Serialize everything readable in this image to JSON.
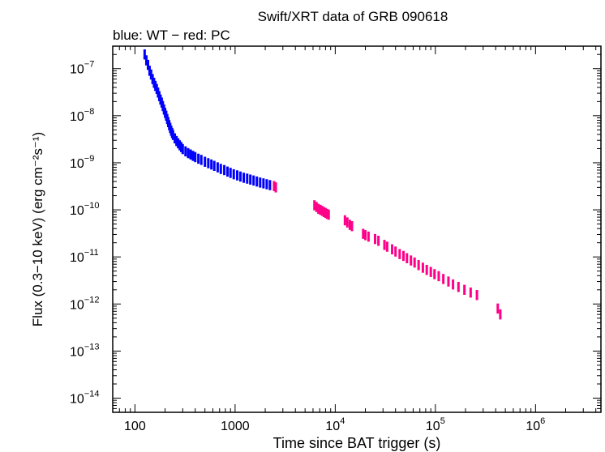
{
  "chart_data": {
    "type": "scatter",
    "title": "Swift/XRT data of GRB 090618",
    "subtitle": "blue: WT − red: PC",
    "xlabel": "Time since BAT trigger (s)",
    "ylabel": "Flux (0.3−10 keV) (erg cm⁻²s⁻¹)",
    "xscale": "log",
    "yscale": "log",
    "xlim": [
      60,
      4500000
    ],
    "ylim": [
      5e-15,
      3e-07
    ],
    "grid": false,
    "x_ticks": [
      {
        "value": 100,
        "base": "100",
        "exp": ""
      },
      {
        "value": 1000,
        "base": "1000",
        "exp": ""
      },
      {
        "value": 10000,
        "base": "10",
        "exp": "4"
      },
      {
        "value": 100000,
        "base": "10",
        "exp": "5"
      },
      {
        "value": 1000000,
        "base": "10",
        "exp": "6"
      }
    ],
    "y_ticks": [
      {
        "value": 1e-07,
        "base": "10",
        "exp": "−7"
      },
      {
        "value": 1e-08,
        "base": "10",
        "exp": "−8"
      },
      {
        "value": 1e-09,
        "base": "10",
        "exp": "−9"
      },
      {
        "value": 1e-10,
        "base": "10",
        "exp": "−10"
      },
      {
        "value": 1e-11,
        "base": "10",
        "exp": "−11"
      },
      {
        "value": 1e-12,
        "base": "10",
        "exp": "−12"
      },
      {
        "value": 1e-13,
        "base": "10",
        "exp": "−13"
      },
      {
        "value": 1e-14,
        "base": "10",
        "exp": "−14"
      }
    ],
    "series": [
      {
        "name": "WT",
        "color": "#0000ff",
        "points": [
          [
            125,
            2e-07
          ],
          [
            130,
            1.5e-07
          ],
          [
            135,
            1.2e-07
          ],
          [
            140,
            9e-08
          ],
          [
            145,
            7.5e-08
          ],
          [
            150,
            6e-08
          ],
          [
            155,
            5e-08
          ],
          [
            160,
            4.3e-08
          ],
          [
            165,
            3.7e-08
          ],
          [
            170,
            3.1e-08
          ],
          [
            175,
            2.6e-08
          ],
          [
            180,
            2.2e-08
          ],
          [
            185,
            1.9e-08
          ],
          [
            190,
            1.6e-08
          ],
          [
            195,
            1.35e-08
          ],
          [
            200,
            1.15e-08
          ],
          [
            205,
            1e-08
          ],
          [
            210,
            8.5e-09
          ],
          [
            215,
            7.3e-09
          ],
          [
            220,
            6.3e-09
          ],
          [
            225,
            5.5e-09
          ],
          [
            230,
            4.8e-09
          ],
          [
            235,
            4.3e-09
          ],
          [
            240,
            3.9e-09
          ],
          [
            250,
            3.3e-09
          ],
          [
            260,
            2.9e-09
          ],
          [
            270,
            2.6e-09
          ],
          [
            280,
            2.35e-09
          ],
          [
            290,
            2.15e-09
          ],
          [
            300,
            1.95e-09
          ],
          [
            320,
            1.75e-09
          ],
          [
            340,
            1.6e-09
          ],
          [
            360,
            1.5e-09
          ],
          [
            380,
            1.4e-09
          ],
          [
            400,
            1.32e-09
          ],
          [
            430,
            1.22e-09
          ],
          [
            460,
            1.15e-09
          ],
          [
            500,
            1.05e-09
          ],
          [
            540,
            9.8e-10
          ],
          [
            580,
            9.2e-10
          ],
          [
            620,
            8.6e-10
          ],
          [
            670,
            8e-10
          ],
          [
            720,
            7.4e-10
          ],
          [
            780,
            7e-10
          ],
          [
            840,
            6.5e-10
          ],
          [
            900,
            6.1e-10
          ],
          [
            970,
            5.7e-10
          ],
          [
            1050,
            5.4e-10
          ],
          [
            1130,
            5.1e-10
          ],
          [
            1220,
            4.8e-10
          ],
          [
            1320,
            4.6e-10
          ],
          [
            1420,
            4.4e-10
          ],
          [
            1530,
            4.2e-10
          ],
          [
            1650,
            4e-10
          ],
          [
            1780,
            3.8e-10
          ],
          [
            1920,
            3.65e-10
          ],
          [
            2070,
            3.5e-10
          ],
          [
            2230,
            3.35e-10
          ]
        ]
      },
      {
        "name": "PC",
        "color": "#ff0088",
        "points": [
          [
            2450,
            3.2e-10
          ],
          [
            2550,
            3e-10
          ],
          [
            6200,
            1.25e-10
          ],
          [
            6500,
            1.15e-10
          ],
          [
            6800,
            1.05e-10
          ],
          [
            7100,
            1e-10
          ],
          [
            7400,
            9.5e-11
          ],
          [
            7700,
            9e-11
          ],
          [
            8000,
            8.6e-11
          ],
          [
            8300,
            8.2e-11
          ],
          [
            8600,
            7.9e-11
          ],
          [
            12500,
            6e-11
          ],
          [
            13200,
            5.4e-11
          ],
          [
            14000,
            4.8e-11
          ],
          [
            14700,
            4.5e-11
          ],
          [
            19000,
            3.1e-11
          ],
          [
            20000,
            2.9e-11
          ],
          [
            21500,
            2.7e-11
          ],
          [
            25000,
            2.4e-11
          ],
          [
            27000,
            2.2e-11
          ],
          [
            31000,
            1.8e-11
          ],
          [
            33000,
            1.65e-11
          ],
          [
            37000,
            1.45e-11
          ],
          [
            40000,
            1.3e-11
          ],
          [
            44000,
            1.15e-11
          ],
          [
            48000,
            1.05e-11
          ],
          [
            52000,
            9.4e-12
          ],
          [
            57000,
            8.4e-12
          ],
          [
            62000,
            7.6e-12
          ],
          [
            68000,
            6.7e-12
          ],
          [
            75000,
            5.9e-12
          ],
          [
            82000,
            5.3e-12
          ],
          [
            90000,
            4.8e-12
          ],
          [
            98000,
            4.3e-12
          ],
          [
            108000,
            3.9e-12
          ],
          [
            120000,
            3.4e-12
          ],
          [
            135000,
            3e-12
          ],
          [
            150000,
            2.6e-12
          ],
          [
            170000,
            2.3e-12
          ],
          [
            195000,
            2e-12
          ],
          [
            225000,
            1.75e-12
          ],
          [
            260000,
            1.55e-12
          ],
          [
            420000,
            8e-13
          ],
          [
            445000,
            6e-13
          ]
        ]
      }
    ]
  }
}
